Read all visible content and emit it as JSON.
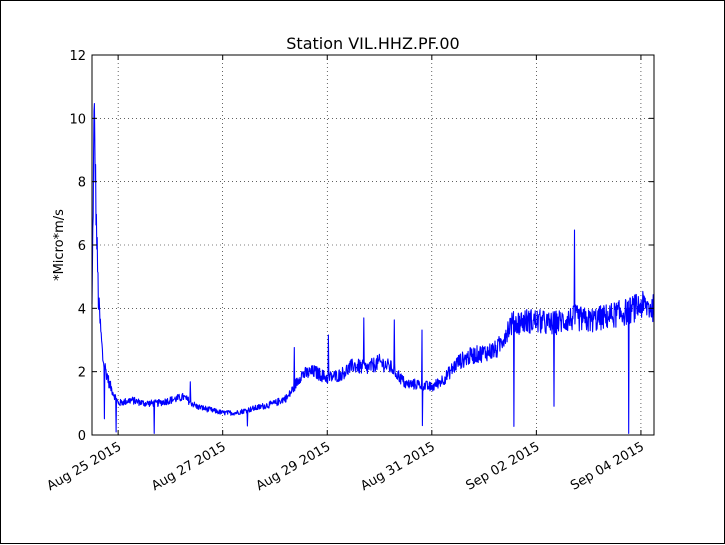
{
  "chart_data": {
    "type": "line",
    "title": "Station VIL.HHZ.PF.00",
    "xlabel": "",
    "ylabel": "*Micro*m/s",
    "x_tick_labels": [
      "Aug 25 2015",
      "Aug 27 2015",
      "Aug 29 2015",
      "Aug 31 2015",
      "Sep 02 2015",
      "Sep 04 2015"
    ],
    "x_tick_dates": [
      "2015-08-25",
      "2015-08-27",
      "2015-08-29",
      "2015-08-31",
      "2015-09-02",
      "2015-09-04"
    ],
    "x_range": [
      "2015-08-24 12:00",
      "2015-09-04 06:00"
    ],
    "y_ticks": [
      "0",
      "2",
      "4",
      "6",
      "8",
      "10",
      "12"
    ],
    "ylim": [
      0,
      12
    ],
    "grid": true,
    "series": [
      {
        "color": "#0000ff",
        "x": [
          "2015-08-24 12:00",
          "2015-08-24 13:00",
          "2015-08-24 14:00",
          "2015-08-24 15:00",
          "2015-08-24 17:00",
          "2015-08-24 20:00",
          "2015-08-25 00:00",
          "2015-08-25 06:00",
          "2015-08-25 12:00",
          "2015-08-25 18:00",
          "2015-08-26 00:00",
          "2015-08-26 06:00",
          "2015-08-26 12:00",
          "2015-08-26 18:00",
          "2015-08-27 00:00",
          "2015-08-27 06:00",
          "2015-08-27 12:00",
          "2015-08-27 18:00",
          "2015-08-28 00:00",
          "2015-08-28 06:00",
          "2015-08-28 12:00",
          "2015-08-28 18:00",
          "2015-08-29 00:00",
          "2015-08-29 06:00",
          "2015-08-29 12:00",
          "2015-08-29 18:00",
          "2015-08-30 00:00",
          "2015-08-30 06:00",
          "2015-08-30 12:00",
          "2015-08-30 18:00",
          "2015-08-31 00:00",
          "2015-08-31 06:00",
          "2015-08-31 12:00",
          "2015-08-31 18:00",
          "2015-09-01 00:00",
          "2015-09-01 06:00",
          "2015-09-01 12:00",
          "2015-09-01 18:00",
          "2015-09-02 00:00",
          "2015-09-02 06:00",
          "2015-09-02 12:00",
          "2015-09-02 18:00",
          "2015-09-03 00:00",
          "2015-09-03 06:00",
          "2015-09-03 12:00",
          "2015-09-03 18:00",
          "2015-09-04 00:00",
          "2015-09-04 06:00"
        ],
        "values": [
          4.0,
          10.2,
          6.7,
          4.2,
          2.4,
          1.6,
          1.0,
          1.1,
          1.0,
          1.0,
          1.1,
          1.2,
          0.9,
          0.8,
          0.7,
          0.7,
          0.8,
          0.9,
          1.0,
          1.2,
          1.9,
          2.0,
          1.8,
          1.9,
          2.2,
          2.1,
          2.3,
          2.1,
          1.6,
          1.6,
          1.5,
          1.8,
          2.3,
          2.5,
          2.6,
          2.7,
          3.5,
          3.6,
          3.6,
          3.5,
          3.6,
          3.7,
          3.6,
          3.7,
          3.8,
          3.9,
          4.1,
          4.0
        ]
      }
    ]
  }
}
